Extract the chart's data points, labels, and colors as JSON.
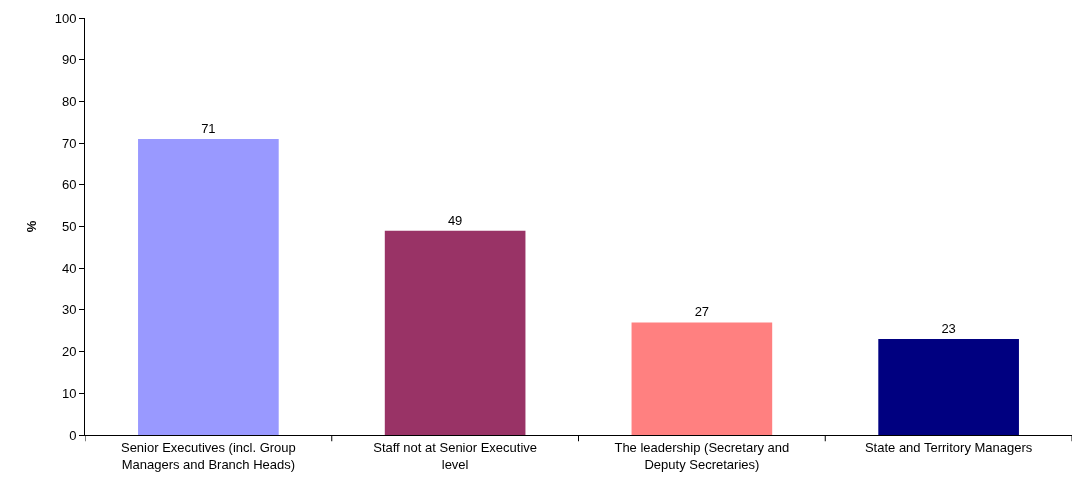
{
  "chart_data": {
    "type": "bar",
    "ylabel": "%",
    "categories": [
      "Senior Executives (incl. Group Managers and Branch Heads)",
      "Staff not at Senior Executive level",
      "The leadership (Secretary and Deputy Secretaries)",
      "State and Territory Managers"
    ],
    "values": [
      71,
      49,
      27,
      23
    ],
    "colors": [
      "#9999ff",
      "#993366",
      "#ff8080",
      "#000080"
    ],
    "ylim": [
      0,
      100
    ],
    "yticks": [
      0,
      10,
      20,
      30,
      40,
      50,
      60,
      70,
      80,
      90,
      100
    ],
    "data_labels": true
  }
}
